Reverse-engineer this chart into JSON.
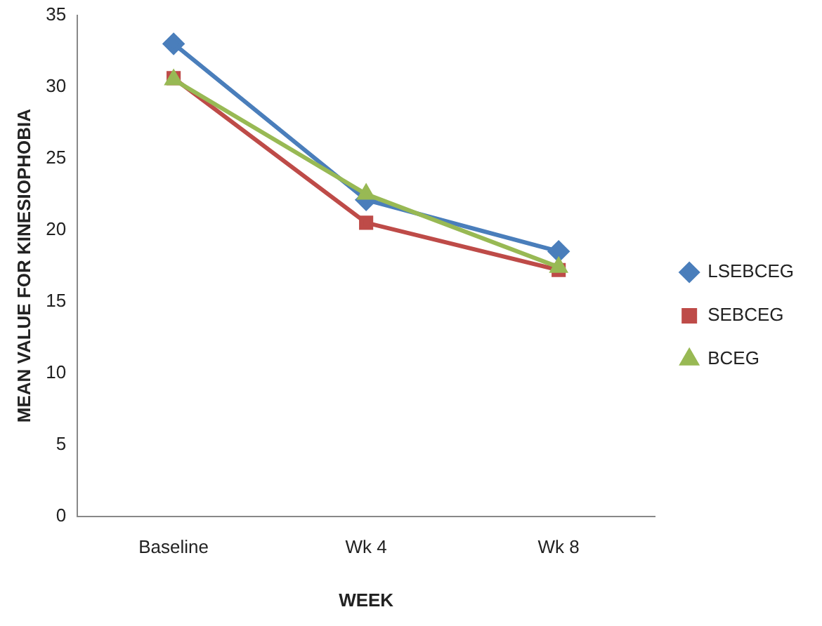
{
  "chart_data": {
    "type": "line",
    "xlabel": "WEEK",
    "ylabel": "MEAN VALUE FOR KINESIOPHOBIA",
    "categories": [
      "Baseline",
      "Wk 4",
      "Wk 8"
    ],
    "series": [
      {
        "name": "LSEBCEG",
        "color": "#4a7ebb",
        "marker": "diamond",
        "values": [
          33.0,
          22.1,
          18.5
        ]
      },
      {
        "name": "SEBCEG",
        "color": "#be4b48",
        "marker": "square",
        "values": [
          30.6,
          20.5,
          17.2
        ]
      },
      {
        "name": "BCEG",
        "color": "#98b954",
        "marker": "triangle",
        "values": [
          30.5,
          22.5,
          17.4
        ]
      }
    ],
    "ylim": [
      0,
      35
    ],
    "yticks": [
      0,
      5,
      10,
      15,
      20,
      25,
      30,
      35
    ],
    "grid": false,
    "legend": "right",
    "line_style": "solid"
  }
}
